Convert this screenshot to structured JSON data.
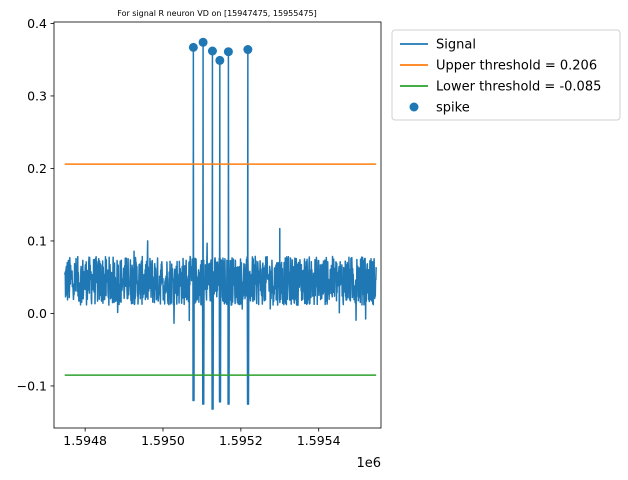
{
  "chart_data": {
    "type": "line",
    "title": "For signal R neuron VD on [15947475, 15955475]",
    "x_offset_label": "1e6",
    "xlim": [
      1.59472,
      1.59556
    ],
    "ylim": [
      -0.158,
      0.402
    ],
    "x_ticks": [
      {
        "value": 1.5948,
        "label": "1.5948"
      },
      {
        "value": 1.595,
        "label": "1.5950"
      },
      {
        "value": 1.5952,
        "label": "1.5952"
      },
      {
        "value": 1.5954,
        "label": "1.5954"
      }
    ],
    "y_ticks": [
      {
        "value": -0.1,
        "label": "−0.1"
      },
      {
        "value": 0.0,
        "label": "0.0"
      },
      {
        "value": 0.1,
        "label": "0.1"
      },
      {
        "value": 0.2,
        "label": "0.2"
      },
      {
        "value": 0.3,
        "label": "0.3"
      },
      {
        "value": 0.4,
        "label": "0.4"
      }
    ],
    "series": [
      {
        "name": "Signal",
        "color": "#1f77b4",
        "x_range": [
          1.5947475,
          1.5955475
        ],
        "baseline_mean": 0.045,
        "noise_range": [
          0.01,
          0.085
        ],
        "spikes": [
          {
            "x": 1.595078,
            "peak": 0.367,
            "trough": -0.12
          },
          {
            "x": 1.595103,
            "peak": 0.374,
            "trough": -0.125
          },
          {
            "x": 1.595127,
            "peak": 0.362,
            "trough": -0.132
          },
          {
            "x": 1.595146,
            "peak": 0.349,
            "trough": -0.122
          },
          {
            "x": 1.595168,
            "peak": 0.361,
            "trough": -0.125
          },
          {
            "x": 1.595218,
            "peak": 0.364,
            "trough": -0.125
          }
        ]
      },
      {
        "name": "Upper threshold = 0.206",
        "color": "#ff7f0e",
        "x": [
          1.5947475,
          1.5955475
        ],
        "y": [
          0.206,
          0.206
        ]
      },
      {
        "name": "Lower threshold = -0.085",
        "color": "#2ca02c",
        "x": [
          1.5947475,
          1.5955475
        ],
        "y": [
          -0.085,
          -0.085
        ]
      }
    ],
    "spike_points": {
      "name": "spike",
      "color": "#1f77b4",
      "points": [
        {
          "x": 1.595078,
          "y": 0.367
        },
        {
          "x": 1.595103,
          "y": 0.374
        },
        {
          "x": 1.595127,
          "y": 0.362
        },
        {
          "x": 1.595146,
          "y": 0.349
        },
        {
          "x": 1.595168,
          "y": 0.361
        },
        {
          "x": 1.595218,
          "y": 0.364
        }
      ]
    },
    "legend": {
      "placement": "outside-top-right",
      "entries": [
        {
          "label": "Signal",
          "type": "line",
          "color": "#1f77b4"
        },
        {
          "label": "Upper threshold = 0.206",
          "type": "line",
          "color": "#ff7f0e"
        },
        {
          "label": "Lower threshold = -0.085",
          "type": "line",
          "color": "#2ca02c"
        },
        {
          "label": "spike",
          "type": "marker",
          "color": "#1f77b4"
        }
      ]
    },
    "grid": false
  }
}
